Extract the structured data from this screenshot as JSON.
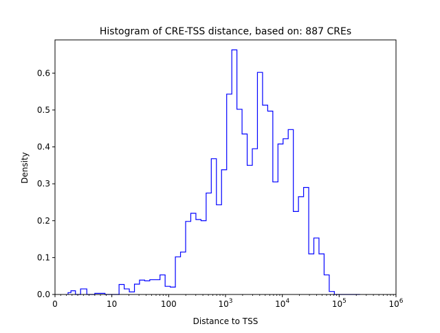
{
  "chart_data": {
    "type": "histogram",
    "title": "Histogram of CRE-TSS distance, based on: 887 CREs",
    "xlabel": "Distance to TSS",
    "ylabel": "Density",
    "x_scale": "symlog",
    "xlim": [
      0,
      1000000
    ],
    "ylim": [
      0,
      0.69
    ],
    "grid": false,
    "series_color": "#0000ff",
    "x_ticks": [
      {
        "value": 0,
        "label": "0"
      },
      {
        "value": 10,
        "label": "10"
      },
      {
        "value": 100,
        "label": "100"
      },
      {
        "value": 1000,
        "label": "10",
        "sup": "3"
      },
      {
        "value": 10000,
        "label": "10",
        "sup": "4"
      },
      {
        "value": 100000,
        "label": "10",
        "sup": "5"
      },
      {
        "value": 1000000,
        "label": "10",
        "sup": "6"
      }
    ],
    "y_ticks": [
      {
        "value": 0.0,
        "label": "0.0"
      },
      {
        "value": 0.1,
        "label": "0.1"
      },
      {
        "value": 0.2,
        "label": "0.2"
      },
      {
        "value": 0.3,
        "label": "0.3"
      },
      {
        "value": 0.4,
        "label": "0.4"
      },
      {
        "value": 0.5,
        "label": "0.5"
      },
      {
        "value": 0.6,
        "label": "0.6"
      }
    ],
    "bin_edges": [
      2.3,
      2.8,
      3.6,
      4.5,
      5.6,
      7.0,
      8.8,
      11.0,
      13.4,
      16.5,
      20.3,
      25.0,
      30.7,
      37.8,
      46.5,
      57.2,
      70.4,
      86.6,
      106.6,
      131.2,
      161.6,
      198.9,
      244.9,
      301.4,
      371.0,
      456.7,
      562.1,
      691.9,
      851.7,
      1048.4,
      1290.5,
      1588.5,
      1955.4,
      2407.0,
      2962.9,
      3647.1,
      4489.4,
      5526.3,
      6802.6,
      8373.6,
      10307.5,
      12688.0,
      15618.2,
      19225.2,
      23665.2,
      29130.5,
      35858.0,
      44139.1,
      54332.8,
      66880.7,
      82326.4,
      101339.2,
      124742.9,
      153551.4,
      189013.0,
      232664.1
    ],
    "densities": [
      0.005,
      0.01,
      0.0,
      0.015,
      0.0,
      0.003,
      0.0,
      0.0,
      0.027,
      0.015,
      0.007,
      0.028,
      0.039,
      0.037,
      0.04,
      0.04,
      0.053,
      0.022,
      0.02,
      0.102,
      0.115,
      0.198,
      0.22,
      0.203,
      0.2,
      0.275,
      0.368,
      0.243,
      0.338,
      0.543,
      0.663,
      0.502,
      0.435,
      0.35,
      0.395,
      0.602,
      0.513,
      0.497,
      0.305,
      0.408,
      0.422,
      0.447,
      0.225,
      0.265,
      0.29,
      0.11,
      0.153,
      0.11,
      0.053,
      0.008,
      0.0,
      0.0,
      0.0,
      0.0,
      0.0
    ]
  }
}
